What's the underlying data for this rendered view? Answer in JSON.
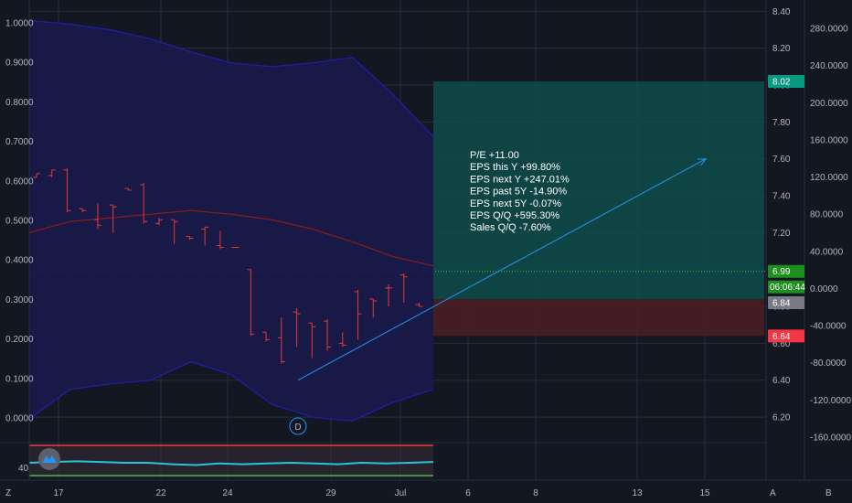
{
  "colors": {
    "background": "#131722",
    "grid": "#2a2e39",
    "candle": "#e53935",
    "band_fill": "#1a1a4a",
    "band_line": "#1f1fb0",
    "basis_line": "#8e1b1b",
    "arrow": "#2196f3",
    "profit_zone": "#0e4d4a",
    "loss_zone": "#4a1e22",
    "target_tag": "#089981",
    "entry_tag_price": "#1e8e1e",
    "current_tag": "#787b86",
    "stop_tag": "#f23645",
    "rsi_line": "#26c6da",
    "rsi_upper": "#f23645",
    "rsi_lower": "#4caf50"
  },
  "chart_data": {
    "type": "candlestick",
    "x_labels": [
      "17",
      "22",
      "24",
      "29",
      "Jul",
      "6",
      "8",
      "13",
      "15"
    ],
    "left_axis_ticks": [
      "1.0000",
      "0.9000",
      "0.8000",
      "0.7000",
      "0.6000",
      "0.5000",
      "0.4000",
      "0.3000",
      "0.2000",
      "0.1000",
      "0.0000"
    ],
    "price_axis_ticks": [
      "8.40",
      "8.20",
      "8.00",
      "7.80",
      "7.60",
      "7.40",
      "7.20",
      "7.00",
      "6.80",
      "6.60",
      "6.40",
      "6.20"
    ],
    "far_right_ticks": [
      "280.0000",
      "240.0000",
      "200.0000",
      "160.0000",
      "120.0000",
      "80.0000",
      "40.0000",
      "0.0000",
      "-40.0000",
      "-80.0000",
      "-120.0000",
      "-160.0000"
    ],
    "price_range": [
      6.1,
      8.45
    ],
    "candles": [
      {
        "o": 7.5,
        "c": 7.52,
        "h": 7.52,
        "l": 7.5
      },
      {
        "o": 7.51,
        "c": 7.54,
        "h": 7.54,
        "l": 7.5
      },
      {
        "o": 7.54,
        "c": 7.32,
        "h": 7.55,
        "l": 7.31
      },
      {
        "o": 7.33,
        "c": 7.32,
        "h": 7.33,
        "l": 7.31
      },
      {
        "o": 7.27,
        "c": 7.24,
        "h": 7.36,
        "l": 7.22
      },
      {
        "o": 7.35,
        "c": 7.34,
        "h": 7.35,
        "l": 7.2
      },
      {
        "o": 7.44,
        "c": 7.43,
        "h": 7.44,
        "l": 7.43
      },
      {
        "o": 7.46,
        "c": 7.26,
        "h": 7.47,
        "l": 7.25
      },
      {
        "o": 7.25,
        "c": 7.27,
        "h": 7.28,
        "l": 7.24
      },
      {
        "o": 7.27,
        "c": 7.26,
        "h": 7.27,
        "l": 7.14
      },
      {
        "o": 7.18,
        "c": 7.17,
        "h": 7.18,
        "l": 7.16
      },
      {
        "o": 7.22,
        "c": 7.23,
        "h": 7.23,
        "l": 7.13
      },
      {
        "o": 7.13,
        "c": 7.12,
        "h": 7.21,
        "l": 7.11
      },
      {
        "o": 7.12,
        "c": 7.12,
        "h": 7.12,
        "l": 7.12
      },
      {
        "o": 7.0,
        "c": 6.65,
        "h": 7.0,
        "l": 6.64
      },
      {
        "o": 6.66,
        "c": 6.62,
        "h": 6.66,
        "l": 6.61
      },
      {
        "o": 6.63,
        "c": 6.5,
        "h": 6.74,
        "l": 6.49
      },
      {
        "o": 6.77,
        "c": 6.76,
        "h": 6.79,
        "l": 6.58
      },
      {
        "o": 6.71,
        "c": 6.69,
        "h": 6.71,
        "l": 6.52
      },
      {
        "o": 6.72,
        "c": 6.58,
        "h": 6.73,
        "l": 6.56
      },
      {
        "o": 6.6,
        "c": 6.59,
        "h": 6.66,
        "l": 6.58
      },
      {
        "o": 6.88,
        "c": 6.76,
        "h": 6.89,
        "l": 6.62
      },
      {
        "o": 6.84,
        "c": 6.83,
        "h": 6.84,
        "l": 6.74
      },
      {
        "o": 6.9,
        "c": 6.9,
        "h": 6.92,
        "l": 6.8
      },
      {
        "o": 6.97,
        "c": 6.96,
        "h": 6.98,
        "l": 6.82
      },
      {
        "o": 6.81,
        "c": 6.8,
        "h": 6.82,
        "l": 6.8
      }
    ],
    "bands": {
      "upper": [
        8.35,
        8.33,
        8.3,
        8.25,
        8.18,
        8.12,
        8.1,
        8.12,
        8.15,
        7.95,
        7.72
      ],
      "basis": [
        7.2,
        7.26,
        7.28,
        7.3,
        7.32,
        7.3,
        7.27,
        7.22,
        7.15,
        7.07,
        7.02
      ],
      "lower": [
        6.19,
        6.35,
        6.38,
        6.4,
        6.5,
        6.43,
        6.27,
        6.2,
        6.18,
        6.28,
        6.35
      ]
    },
    "position": {
      "target": "8.02",
      "entry": "6.84",
      "stop": "6.64",
      "last": "6.99",
      "countdown": "06:06:44"
    },
    "annotation": [
      "P/E +11.00",
      "EPS this Y +99.80%",
      "EPS next Y +247.01%",
      "EPS past 5Y -14.90%",
      "EPS next 5Y -0.07%",
      "EPS Q/Q +595.30%",
      "Sales Q/Q -7.60%"
    ],
    "arrow": {
      "from_price": 6.4,
      "to_price": 7.6
    },
    "dividend_marker": "D",
    "oscillator": {
      "label": "40",
      "values": [
        47,
        48,
        49,
        48,
        47,
        47,
        45,
        44,
        46,
        45,
        46,
        47,
        46,
        45,
        47,
        46,
        47,
        48
      ]
    }
  },
  "corner": {
    "left": "Z",
    "right": "A",
    "far_right": "B"
  }
}
